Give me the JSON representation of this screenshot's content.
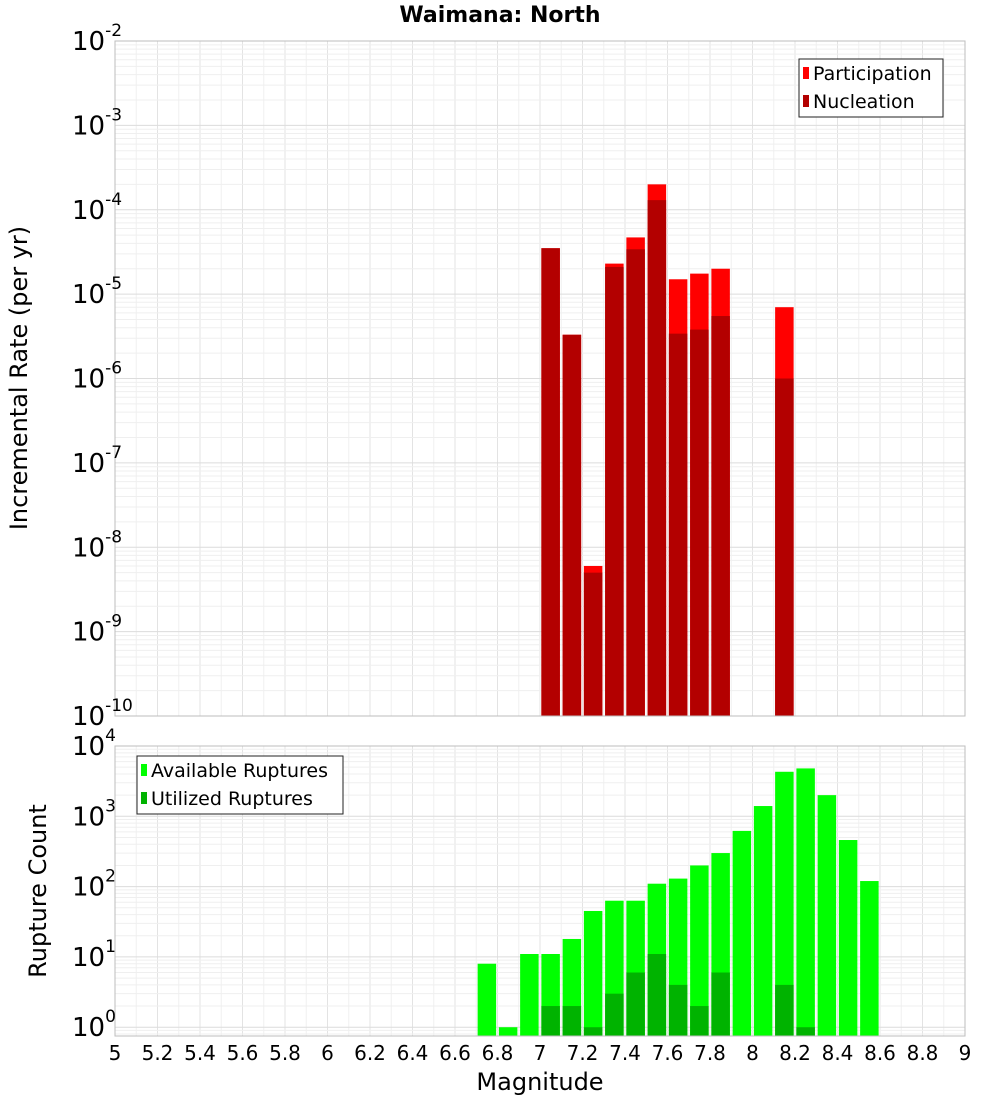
{
  "chart_data": [
    {
      "type": "bar",
      "title": "Waimana: North",
      "xlabel": "",
      "ylabel": "Incremental Rate (per yr)",
      "yscale": "log",
      "ylim": [
        1e-10,
        0.01
      ],
      "xlim": [
        5,
        9
      ],
      "ytick_exponents": [
        "-10",
        "-9",
        "-8",
        "-7",
        "-6",
        "-5",
        "-4",
        "-3",
        "-2"
      ],
      "legend_position": "top-right",
      "grid": true,
      "colors": {
        "participation": "#ff0000",
        "nucleation": "#b30000"
      },
      "series": [
        {
          "name": "Participation",
          "points": [
            {
              "x": 7.05,
              "y": 3.5e-05
            },
            {
              "x": 7.15,
              "y": 3.3e-06
            },
            {
              "x": 7.25,
              "y": 6e-09
            },
            {
              "x": 7.35,
              "y": 2.3e-05
            },
            {
              "x": 7.45,
              "y": 4.7e-05
            },
            {
              "x": 7.55,
              "y": 0.0002
            },
            {
              "x": 7.65,
              "y": 1.5e-05
            },
            {
              "x": 7.75,
              "y": 1.75e-05
            },
            {
              "x": 7.85,
              "y": 2e-05
            },
            {
              "x": 8.15,
              "y": 7e-06
            }
          ]
        },
        {
          "name": "Nucleation",
          "points": [
            {
              "x": 7.05,
              "y": 3.5e-05
            },
            {
              "x": 7.15,
              "y": 3.3e-06
            },
            {
              "x": 7.25,
              "y": 5e-09
            },
            {
              "x": 7.35,
              "y": 2.1e-05
            },
            {
              "x": 7.45,
              "y": 3.4e-05
            },
            {
              "x": 7.55,
              "y": 0.00013
            },
            {
              "x": 7.65,
              "y": 3.4e-06
            },
            {
              "x": 7.75,
              "y": 3.8e-06
            },
            {
              "x": 7.85,
              "y": 5.5e-06
            },
            {
              "x": 8.15,
              "y": 1e-06
            }
          ]
        }
      ]
    },
    {
      "type": "bar",
      "title": "",
      "xlabel": "Magnitude",
      "ylabel": "Rupture Count",
      "yscale": "log",
      "ylim": [
        0.75,
        10000
      ],
      "xlim": [
        5,
        9
      ],
      "ytick_exponents": [
        "0",
        "1",
        "2",
        "3",
        "4"
      ],
      "xticks": [
        "5",
        "5.2",
        "5.4",
        "5.6",
        "5.8",
        "6",
        "6.2",
        "6.4",
        "6.6",
        "6.8",
        "7",
        "7.2",
        "7.4",
        "7.6",
        "7.8",
        "8",
        "8.2",
        "8.4",
        "8.6",
        "8.8",
        "9"
      ],
      "legend_position": "top-left",
      "grid": true,
      "colors": {
        "available": "#00ff00",
        "utilized": "#00b300"
      },
      "series": [
        {
          "name": "Available Ruptures",
          "points": [
            {
              "x": 6.75,
              "y": 8
            },
            {
              "x": 6.85,
              "y": 1
            },
            {
              "x": 6.95,
              "y": 11
            },
            {
              "x": 7.05,
              "y": 11
            },
            {
              "x": 7.15,
              "y": 18
            },
            {
              "x": 7.25,
              "y": 45
            },
            {
              "x": 7.35,
              "y": 63
            },
            {
              "x": 7.45,
              "y": 63
            },
            {
              "x": 7.55,
              "y": 110
            },
            {
              "x": 7.65,
              "y": 130
            },
            {
              "x": 7.75,
              "y": 200
            },
            {
              "x": 7.85,
              "y": 300
            },
            {
              "x": 7.95,
              "y": 620
            },
            {
              "x": 8.05,
              "y": 1400
            },
            {
              "x": 8.15,
              "y": 4300
            },
            {
              "x": 8.25,
              "y": 4800
            },
            {
              "x": 8.35,
              "y": 2000
            },
            {
              "x": 8.45,
              "y": 460
            },
            {
              "x": 8.55,
              "y": 120
            }
          ]
        },
        {
          "name": "Utilized Ruptures",
          "points": [
            {
              "x": 7.05,
              "y": 2
            },
            {
              "x": 7.15,
              "y": 2
            },
            {
              "x": 7.25,
              "y": 1
            },
            {
              "x": 7.35,
              "y": 3
            },
            {
              "x": 7.45,
              "y": 6
            },
            {
              "x": 7.55,
              "y": 11
            },
            {
              "x": 7.65,
              "y": 4
            },
            {
              "x": 7.75,
              "y": 2
            },
            {
              "x": 7.85,
              "y": 6
            },
            {
              "x": 8.15,
              "y": 4
            },
            {
              "x": 8.25,
              "y": 1
            }
          ]
        }
      ]
    }
  ]
}
